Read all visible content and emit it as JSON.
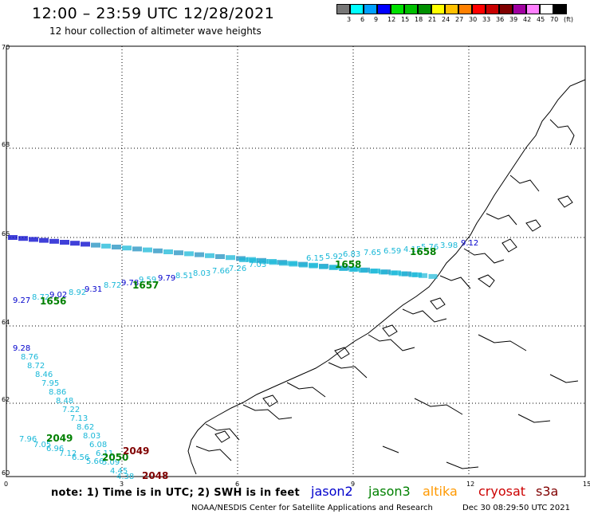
{
  "title": "12:00 – 23:59 UTC 12/28/2021",
  "subtitle": "12 hour collection of altimeter wave heights",
  "legend": {
    "colors": [
      "#777777",
      "#00ffff",
      "#00a0ff",
      "#0000ff",
      "#00e000",
      "#00c000",
      "#009000",
      "#ffff00",
      "#ffc000",
      "#ff8000",
      "#ff0000",
      "#c80000",
      "#800000",
      "#a000a0",
      "#ff80ff",
      "#ffffff",
      "#000000"
    ],
    "labels": [
      "3",
      "6",
      "9",
      "12",
      "15",
      "18",
      "21",
      "24",
      "27",
      "30",
      "33",
      "36",
      "39",
      "42",
      "45",
      "70"
    ],
    "unit": "(ft)"
  },
  "axes": {
    "lat_labels": [
      "70",
      "68",
      "66",
      "64",
      "62",
      "60"
    ],
    "lon_labels": [
      "0",
      "3",
      "6",
      "9",
      "12",
      "15"
    ]
  },
  "tracks": {
    "jason2_color": "#0000cc",
    "jason3_color": "#008000",
    "altika_color": "#ff9900",
    "cryosat_color": "#cc0000",
    "s3a_color": "#800000",
    "cyan_color": "#1ab8d8",
    "pass_labels": [
      {
        "text": "1656",
        "color": "#008000"
      },
      {
        "text": "1657",
        "color": "#008000"
      },
      {
        "text": "1658",
        "color": "#008000"
      },
      {
        "text": "1658",
        "color": "#008000"
      },
      {
        "text": "2049",
        "color": "#008000"
      },
      {
        "text": "2050",
        "color": "#008000"
      },
      {
        "text": "2049",
        "color": "#800000"
      },
      {
        "text": "2048",
        "color": "#800000"
      }
    ],
    "values_track_a": [
      {
        "text": "9.27",
        "color": "#0000cc"
      },
      {
        "text": "8.72",
        "color": "#1ab8d8"
      },
      {
        "text": "9.02",
        "color": "#0000cc"
      },
      {
        "text": "8.92",
        "color": "#1ab8d8"
      },
      {
        "text": "9.31",
        "color": "#0000cc"
      },
      {
        "text": "8.72",
        "color": "#1ab8d8"
      },
      {
        "text": "9.78",
        "color": "#0000cc"
      },
      {
        "text": "9.59",
        "color": "#1ab8d8"
      },
      {
        "text": "9.79",
        "color": "#0000cc"
      },
      {
        "text": "8.51",
        "color": "#1ab8d8"
      },
      {
        "text": "8.03",
        "color": "#1ab8d8"
      },
      {
        "text": "7.66",
        "color": "#1ab8d8"
      },
      {
        "text": "7.26",
        "color": "#1ab8d8"
      },
      {
        "text": "7.03",
        "color": "#1ab8d8"
      },
      {
        "text": "6.15",
        "color": "#1ab8d8"
      },
      {
        "text": "5.92",
        "color": "#1ab8d8"
      },
      {
        "text": "6.83",
        "color": "#1ab8d8"
      },
      {
        "text": "7.65",
        "color": "#1ab8d8"
      },
      {
        "text": "6.59",
        "color": "#1ab8d8"
      },
      {
        "text": "4.15",
        "color": "#1ab8d8"
      },
      {
        "text": "5.76",
        "color": "#1ab8d8"
      },
      {
        "text": "3.98",
        "color": "#1ab8d8"
      },
      {
        "text": "9.12",
        "color": "#0000cc"
      }
    ],
    "values_track_b": [
      {
        "text": "9.28",
        "color": "#0000cc"
      },
      {
        "text": "8.76",
        "color": "#1ab8d8"
      },
      {
        "text": "8.72",
        "color": "#1ab8d8"
      },
      {
        "text": "8.46",
        "color": "#1ab8d8"
      },
      {
        "text": "7.95",
        "color": "#1ab8d8"
      },
      {
        "text": "8.86",
        "color": "#1ab8d8"
      },
      {
        "text": "8.48",
        "color": "#1ab8d8"
      },
      {
        "text": "7.22",
        "color": "#1ab8d8"
      },
      {
        "text": "7.13",
        "color": "#1ab8d8"
      },
      {
        "text": "8.62",
        "color": "#1ab8d8"
      },
      {
        "text": "8.03",
        "color": "#1ab8d8"
      },
      {
        "text": "6.08",
        "color": "#1ab8d8"
      },
      {
        "text": "6.11",
        "color": "#1ab8d8"
      },
      {
        "text": "5.09",
        "color": "#1ab8d8"
      },
      {
        "text": "4.45",
        "color": "#1ab8d8"
      },
      {
        "text": "4.38",
        "color": "#1ab8d8"
      }
    ],
    "values_track_c": [
      {
        "text": "7.96",
        "color": "#1ab8d8"
      },
      {
        "text": "7.05",
        "color": "#1ab8d8"
      },
      {
        "text": "6.96",
        "color": "#1ab8d8"
      },
      {
        "text": "7.12",
        "color": "#1ab8d8"
      },
      {
        "text": "6.56",
        "color": "#1ab8d8"
      },
      {
        "text": "5.66",
        "color": "#1ab8d8"
      }
    ]
  },
  "note": "note: 1) Time is in UTC; 2) SWH is in feet",
  "satellites": [
    {
      "name": "jason2",
      "color": "#0000cc"
    },
    {
      "name": "jason3",
      "color": "#008000"
    },
    {
      "name": "altika",
      "color": "#ff9900"
    },
    {
      "name": "cryosat",
      "color": "#cc0000"
    },
    {
      "name": "s3a",
      "color": "#800000"
    }
  ],
  "credit": "NOAA/NESDIS Center for Satellite Applications and Research",
  "timestamp": "Dec 30 08:29:50 UTC 2021"
}
